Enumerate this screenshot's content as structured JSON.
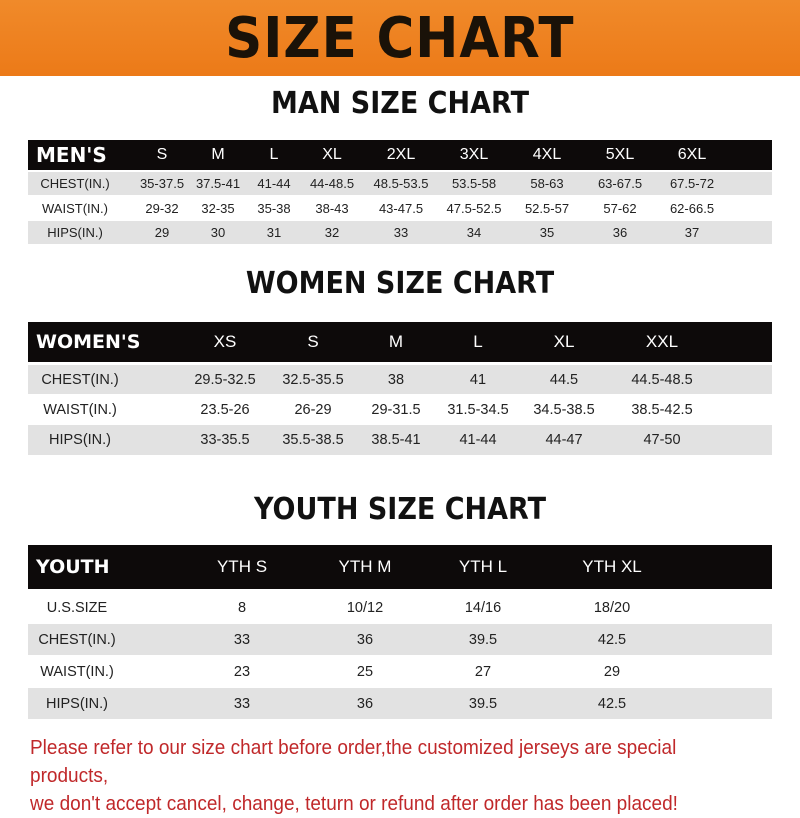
{
  "banner_title": "SIZE CHART",
  "tables": [
    {
      "title": "MAN SIZE CHART",
      "header_label": "MEN'S",
      "sizes": [
        "S",
        "M",
        "L",
        "XL",
        "2XL",
        "3XL",
        "4XL",
        "5XL",
        "6XL"
      ],
      "rows": [
        {
          "label": "CHEST(IN.)",
          "values": [
            "35-37.5",
            "37.5-41",
            "41-44",
            "44-48.5",
            "48.5-53.5",
            "53.5-58",
            "58-63",
            "63-67.5",
            "67.5-72"
          ]
        },
        {
          "label": "WAIST(IN.)",
          "values": [
            "29-32",
            "32-35",
            "35-38",
            "38-43",
            "43-47.5",
            "47.5-52.5",
            "52.5-57",
            "57-62",
            "62-66.5"
          ]
        },
        {
          "label": "HIPS(IN.)",
          "values": [
            "29",
            "30",
            "31",
            "32",
            "33",
            "34",
            "35",
            "36",
            "37"
          ]
        }
      ]
    },
    {
      "title": "WOMEN SIZE CHART",
      "header_label": "WOMEN'S",
      "sizes": [
        "XS",
        "S",
        "M",
        "L",
        "XL",
        "XXL"
      ],
      "rows": [
        {
          "label": "CHEST(IN.)",
          "values": [
            "29.5-32.5",
            "32.5-35.5",
            "38",
            "41",
            "44.5",
            "44.5-48.5"
          ]
        },
        {
          "label": "WAIST(IN.)",
          "values": [
            "23.5-26",
            "26-29",
            "29-31.5",
            "31.5-34.5",
            "34.5-38.5",
            "38.5-42.5"
          ]
        },
        {
          "label": "HIPS(IN.)",
          "values": [
            "33-35.5",
            "35.5-38.5",
            "38.5-41",
            "41-44",
            "44-47",
            "47-50"
          ]
        }
      ]
    },
    {
      "title": "YOUTH SIZE CHART",
      "header_label": "YOUTH",
      "sizes": [
        "YTH S",
        "YTH M",
        "YTH L",
        "YTH XL"
      ],
      "rows": [
        {
          "label": "U.S.SIZE",
          "values": [
            "8",
            "10/12",
            "14/16",
            "18/20"
          ]
        },
        {
          "label": "CHEST(IN.)",
          "values": [
            "33",
            "36",
            "39.5",
            "42.5"
          ]
        },
        {
          "label": "WAIST(IN.)",
          "values": [
            "23",
            "25",
            "27",
            "29"
          ]
        },
        {
          "label": "HIPS(IN.)",
          "values": [
            "33",
            "36",
            "39.5",
            "42.5"
          ]
        }
      ]
    }
  ],
  "note_lines": [
    "Please refer to our size chart before order,the customized jerseys are special products,",
    "we don't accept cancel, change, teturn or refund after order has been placed!"
  ],
  "colors": {
    "banner": "#ee8020",
    "header_row": "#0d0a0a",
    "stripe": "#e2e2e2",
    "note": "#c0282a"
  }
}
